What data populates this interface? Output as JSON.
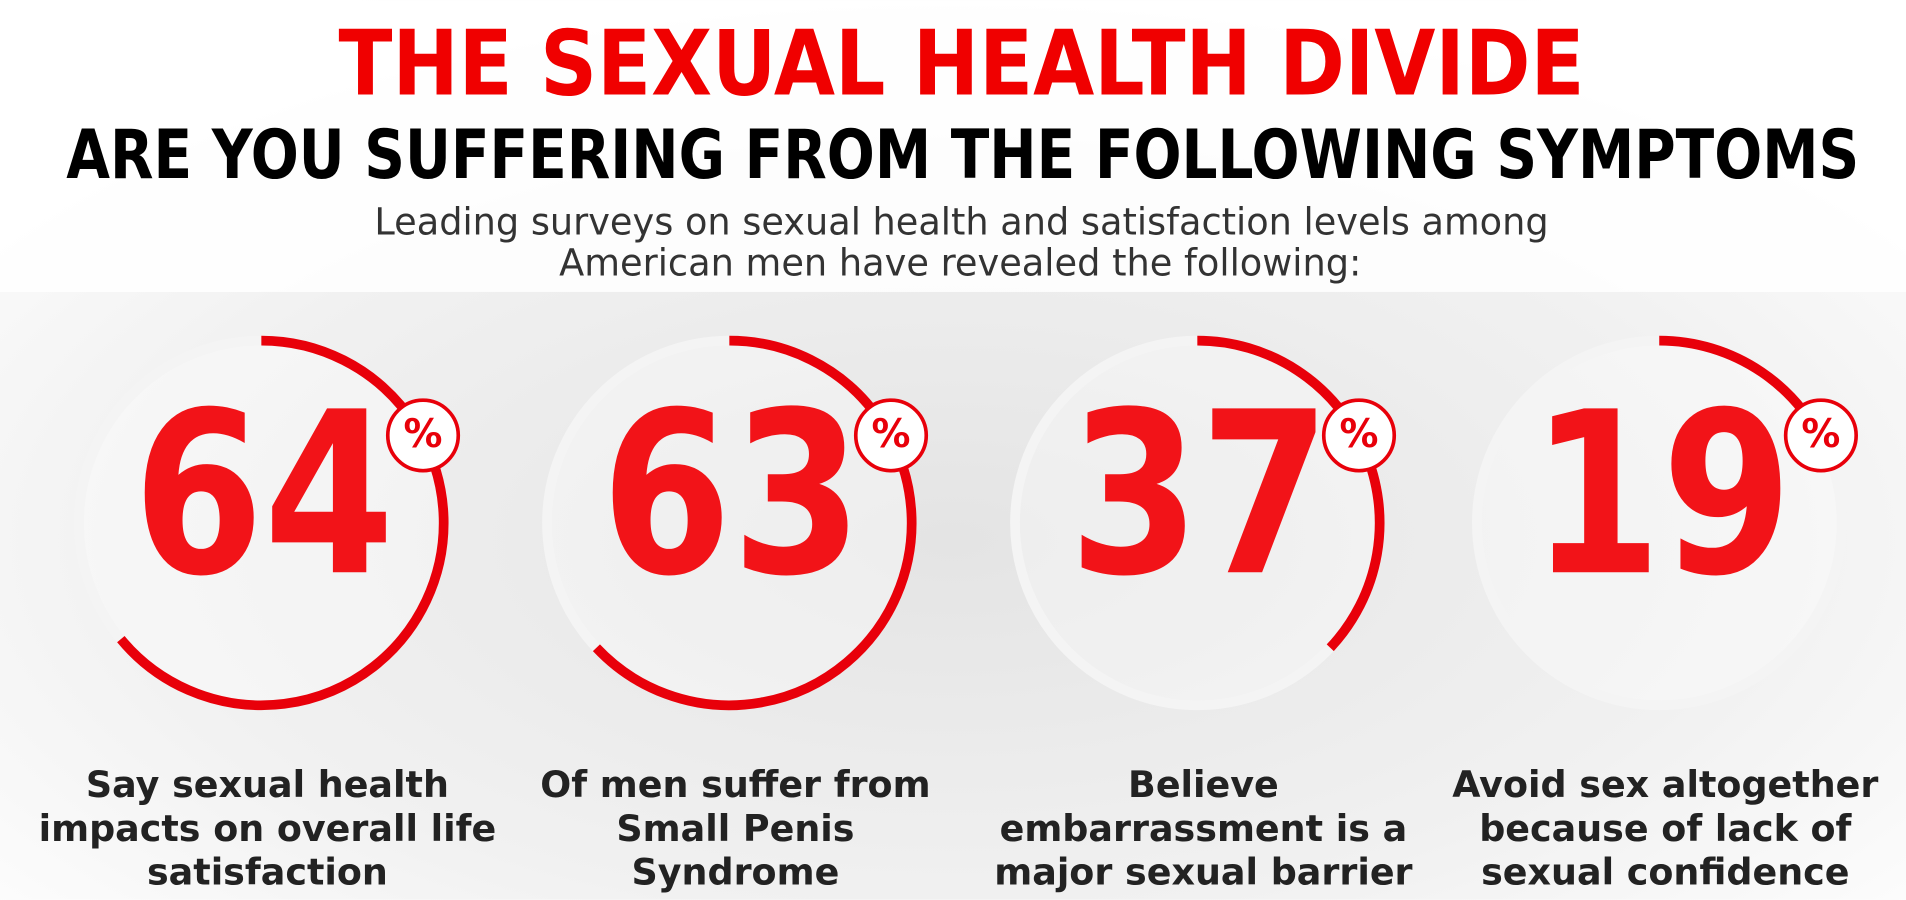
{
  "header": {
    "title": "THE SEXUAL HEALTH DIVIDE",
    "subtitle": "ARE YOU SUFFERING FROM THE FOLLOWING SYMPTOMS",
    "intro": [
      "Leading surveys on sexual health and satisfaction levels among",
      "American men have revealed the following:"
    ]
  },
  "percent_sign": "%",
  "stats": [
    {
      "value": 64,
      "caption": [
        "Say sexual health",
        "impacts on overall life",
        "satisfaction"
      ]
    },
    {
      "value": 63,
      "caption": [
        "Of men suffer from",
        "Small Penis",
        "Syndrome"
      ]
    },
    {
      "value": 37,
      "caption": [
        "Believe",
        "embarrassment is a",
        "major sexual barrier"
      ]
    },
    {
      "value": 19,
      "caption": [
        "Avoid sex altogether",
        "because of lack of",
        "sexual confidence"
      ]
    }
  ]
}
